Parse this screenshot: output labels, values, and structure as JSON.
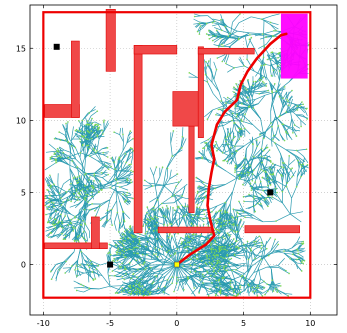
{
  "chart_data": {
    "type": "scatter",
    "title": "",
    "xlabel": "",
    "ylabel": "",
    "xlim": [
      -11,
      12
    ],
    "ylim": [
      -3.5,
      18
    ],
    "grid": true,
    "xticks": [
      "-10",
      "-5",
      "0",
      "5",
      "10"
    ],
    "yticks": [
      "0",
      "5",
      "10",
      "15"
    ],
    "xtick_values": [
      -10,
      -5,
      0,
      5,
      10
    ],
    "ytick_values": [
      0,
      5,
      10,
      15
    ],
    "boundary": [
      -10,
      -2.3,
      10,
      17.5
    ],
    "start": [
      0,
      0
    ],
    "goal_region": [
      7.8,
      12.9,
      9.8,
      17.4
    ],
    "colors": {
      "obstacle_fill": "#f04848",
      "obstacle_edge": "#e00000",
      "tree": "#2b9bb0",
      "tree_nodes": "#7ed957",
      "path": "#ee0000",
      "goal": "#ff00ff",
      "start": "#ffff00",
      "landmark": "#000000"
    },
    "obstacles": [
      [
        -9.9,
        10.2,
        -7.3,
        11.1
      ],
      [
        -7.9,
        10.2,
        -7.3,
        15.5
      ],
      [
        -5.3,
        13.4,
        -4.6,
        17.7
      ],
      [
        -3.2,
        2.2,
        -2.6,
        15.2
      ],
      [
        -3.2,
        14.6,
        0,
        15.2
      ],
      [
        0.9,
        3.6,
        1.3,
        10.4
      ],
      [
        -1.4,
        2.2,
        2.6,
        2.6
      ],
      [
        -0.3,
        9.6,
        1.9,
        12.0
      ],
      [
        1.6,
        8.8,
        2.0,
        15.1
      ],
      [
        1.6,
        14.6,
        5.8,
        15.0
      ],
      [
        -9.9,
        1.1,
        -5.2,
        1.5
      ],
      [
        -6.4,
        1.1,
        -5.8,
        3.3
      ],
      [
        5.1,
        2.2,
        9.2,
        2.7
      ]
    ],
    "landmarks": [
      [
        -9.0,
        15.1
      ],
      [
        -5.0,
        0.0
      ],
      [
        7.0,
        5.0
      ]
    ],
    "path": [
      [
        0,
        0
      ],
      [
        1.0,
        0.7
      ],
      [
        2.2,
        1.4
      ],
      [
        2.8,
        2.0
      ],
      [
        2.5,
        3.1
      ],
      [
        2.3,
        4.1
      ],
      [
        2.4,
        5.3
      ],
      [
        2.6,
        6.4
      ],
      [
        2.8,
        7.3
      ],
      [
        2.6,
        8.3
      ],
      [
        3.0,
        9.7
      ],
      [
        3.6,
        10.6
      ],
      [
        4.5,
        11.4
      ],
      [
        4.8,
        12.5
      ],
      [
        5.3,
        13.4
      ],
      [
        6.0,
        14.3
      ],
      [
        7.0,
        15.3
      ],
      [
        7.8,
        15.9
      ],
      [
        8.2,
        16.0
      ]
    ]
  }
}
